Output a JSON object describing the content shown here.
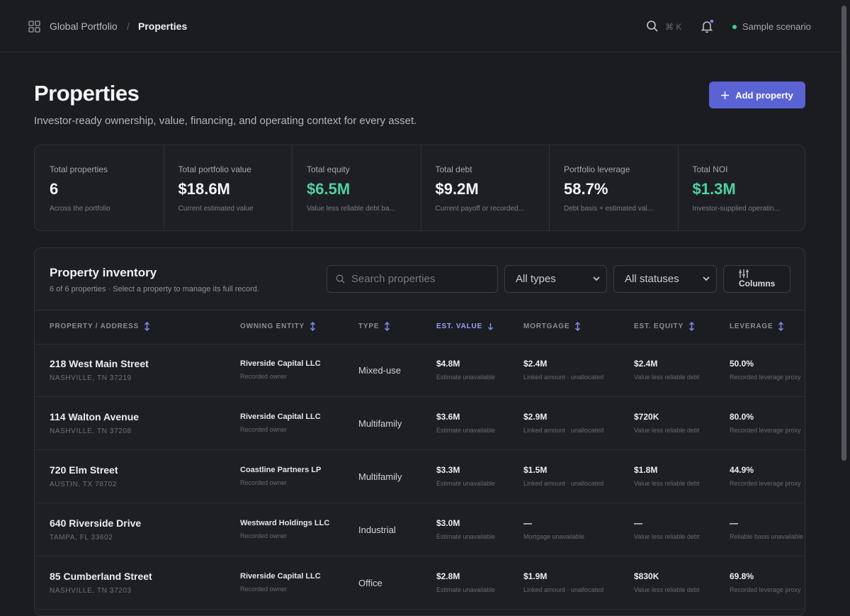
{
  "nav": {
    "breadcrumb_root": "Global Portfolio",
    "separator": "/",
    "breadcrumb_current": "Properties",
    "shortcut": "⌘ K",
    "scenario": "Sample scenario"
  },
  "header": {
    "title": "Properties",
    "subtitle": "Investor-ready ownership, value, financing, and operating context for every asset.",
    "button": "Add property"
  },
  "stats": [
    {
      "label": "Total properties",
      "value": "6",
      "note": "Across the portfolio"
    },
    {
      "label": "Total portfolio value",
      "value": "$18.6M",
      "note": "Current estimated value"
    },
    {
      "label": "Total equity",
      "value": "$6.5M",
      "note": "Value less reliable debt ba...",
      "color": "#4fd1a1"
    },
    {
      "label": "Total debt",
      "value": "$9.2M",
      "note": "Current payoff or recorded..."
    },
    {
      "label": "Portfolio leverage",
      "value": "58.7%",
      "note": "Debt basis + estimated val..."
    },
    {
      "label": "Total NOI",
      "value": "$1.3M",
      "note": "Investor-supplied operatin...",
      "color": "#4fd1a1"
    }
  ],
  "inventory": {
    "title": "Property inventory",
    "subtitle": "6 of 6 properties · Select a property to manage its full record.",
    "search_placeholder": "Search properties",
    "type_filter": "All types",
    "status_filter": "All statuses",
    "columns_button": "Columns"
  },
  "table": {
    "columns": [
      "PROPERTY / ADDRESS",
      "OWNING ENTITY",
      "TYPE",
      "EST. VALUE",
      "MORTGAGE",
      "EST. EQUITY",
      "LEVERAGE"
    ],
    "sorted_column": 3,
    "rows": [
      {
        "address": "218 West Main Street",
        "city": "NASHVILLE, TN 37219",
        "entity": "Riverside Capital LLC",
        "entity_note": "Recorded owner",
        "type": "Mixed-use",
        "value": "$4.8M",
        "value_note": "Estimate unavailable",
        "mortgage": "$2.4M",
        "mortgage_note": "Linked amount · unallocated",
        "equity": "$2.4M",
        "equity_note": "Value less reliable debt",
        "leverage": "50.0%",
        "leverage_note": "Recorded leverage proxy"
      },
      {
        "address": "114 Walton Avenue",
        "city": "NASHVILLE, TN 37208",
        "entity": "Riverside Capital LLC",
        "entity_note": "Recorded owner",
        "type": "Multifamily",
        "value": "$3.6M",
        "value_note": "Estimate unavailable",
        "mortgage": "$2.9M",
        "mortgage_note": "Linked amount · unallocated",
        "equity": "$720K",
        "equity_note": "Value less reliable debt",
        "leverage": "80.0%",
        "leverage_note": "Recorded leverage proxy"
      },
      {
        "address": "720 Elm Street",
        "city": "AUSTIN, TX 78702",
        "entity": "Coastline Partners LP",
        "entity_note": "Recorded owner",
        "type": "Multifamily",
        "value": "$3.3M",
        "value_note": "Estimate unavailable",
        "mortgage": "$1.5M",
        "mortgage_note": "Linked amount · unallocated",
        "equity": "$1.8M",
        "equity_note": "Value less reliable debt",
        "leverage": "44.9%",
        "leverage_note": "Recorded leverage proxy"
      },
      {
        "address": "640 Riverside Drive",
        "city": "TAMPA, FL 33602",
        "entity": "Westward Holdings LLC",
        "entity_note": "Recorded owner",
        "type": "Industrial",
        "value": "$3.0M",
        "value_note": "Estimate unavailable",
        "mortgage": "—",
        "mortgage_note": "Mortgage unavailable",
        "equity": "—",
        "equity_note": "Value less reliable debt",
        "leverage": "—",
        "leverage_note": "Reliable basis unavailable"
      },
      {
        "address": "85 Cumberland Street",
        "city": "NASHVILLE, TN 37203",
        "entity": "Riverside Capital LLC",
        "entity_note": "Recorded owner",
        "type": "Office",
        "value": "$2.8M",
        "value_note": "Estimate unavailable",
        "mortgage": "$1.9M",
        "mortgage_note": "Linked amount · unallocated",
        "equity": "$830K",
        "equity_note": "Value less reliable debt",
        "leverage": "69.8%",
        "leverage_note": "Recorded leverage proxy"
      }
    ]
  }
}
